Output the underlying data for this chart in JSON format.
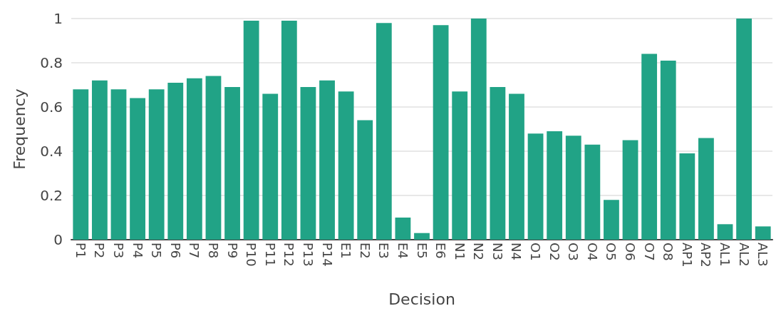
{
  "chart_data": {
    "type": "bar",
    "xlabel": "Decision",
    "ylabel": "Frequency",
    "categories": [
      "P1",
      "P2",
      "P3",
      "P4",
      "P5",
      "P6",
      "P7",
      "P8",
      "P9",
      "P10",
      "P11",
      "P12",
      "P13",
      "P14",
      "E1",
      "E2",
      "E3",
      "E4",
      "E5",
      "E6",
      "N1",
      "N2",
      "N3",
      "N4",
      "O1",
      "O2",
      "O3",
      "O4",
      "O5",
      "O6",
      "O7",
      "O8",
      "AP1",
      "AP2",
      "AL1",
      "AL2",
      "AL3"
    ],
    "values": [
      0.68,
      0.72,
      0.68,
      0.64,
      0.68,
      0.71,
      0.73,
      0.74,
      0.69,
      0.99,
      0.66,
      0.99,
      0.69,
      0.72,
      0.67,
      0.54,
      0.98,
      0.1,
      0.03,
      0.97,
      0.67,
      1.0,
      0.69,
      0.66,
      0.48,
      0.49,
      0.47,
      0.43,
      0.18,
      0.45,
      0.84,
      0.81,
      0.39,
      0.46,
      0.07,
      1.0,
      0.06
    ],
    "color": "#21a386",
    "ylim": [
      0,
      1
    ],
    "yticks": [
      0,
      0.2,
      0.4,
      0.6,
      0.8,
      1
    ],
    "grid": "y"
  }
}
